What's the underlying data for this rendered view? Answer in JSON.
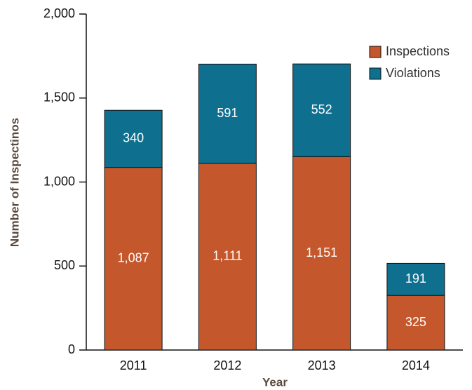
{
  "chart_data": {
    "type": "stacked_bar",
    "x_label": "Year",
    "y_label": "Number of Inspectinos",
    "categories": [
      "2011",
      "2012",
      "2013",
      "2014"
    ],
    "series": [
      {
        "name": "Inspections",
        "color": "#c4572b",
        "values": [
          1087,
          1111,
          1151,
          325
        ],
        "value_labels": [
          "1,087",
          "1,111",
          "1,151",
          "325"
        ]
      },
      {
        "name": "Violations",
        "color": "#0e6f8e",
        "values": [
          340,
          591,
          552,
          191
        ],
        "value_labels": [
          "340",
          "591",
          "552",
          "191"
        ]
      }
    ],
    "ylim": [
      0,
      2000
    ],
    "yticks": [
      0,
      500,
      {
        "value": 1000,
        "label": "1,000"
      },
      {
        "value": 1500,
        "label": "1,500"
      },
      {
        "value": 2000,
        "label": "2,000"
      }
    ],
    "legend": "upper right",
    "grid": false
  }
}
